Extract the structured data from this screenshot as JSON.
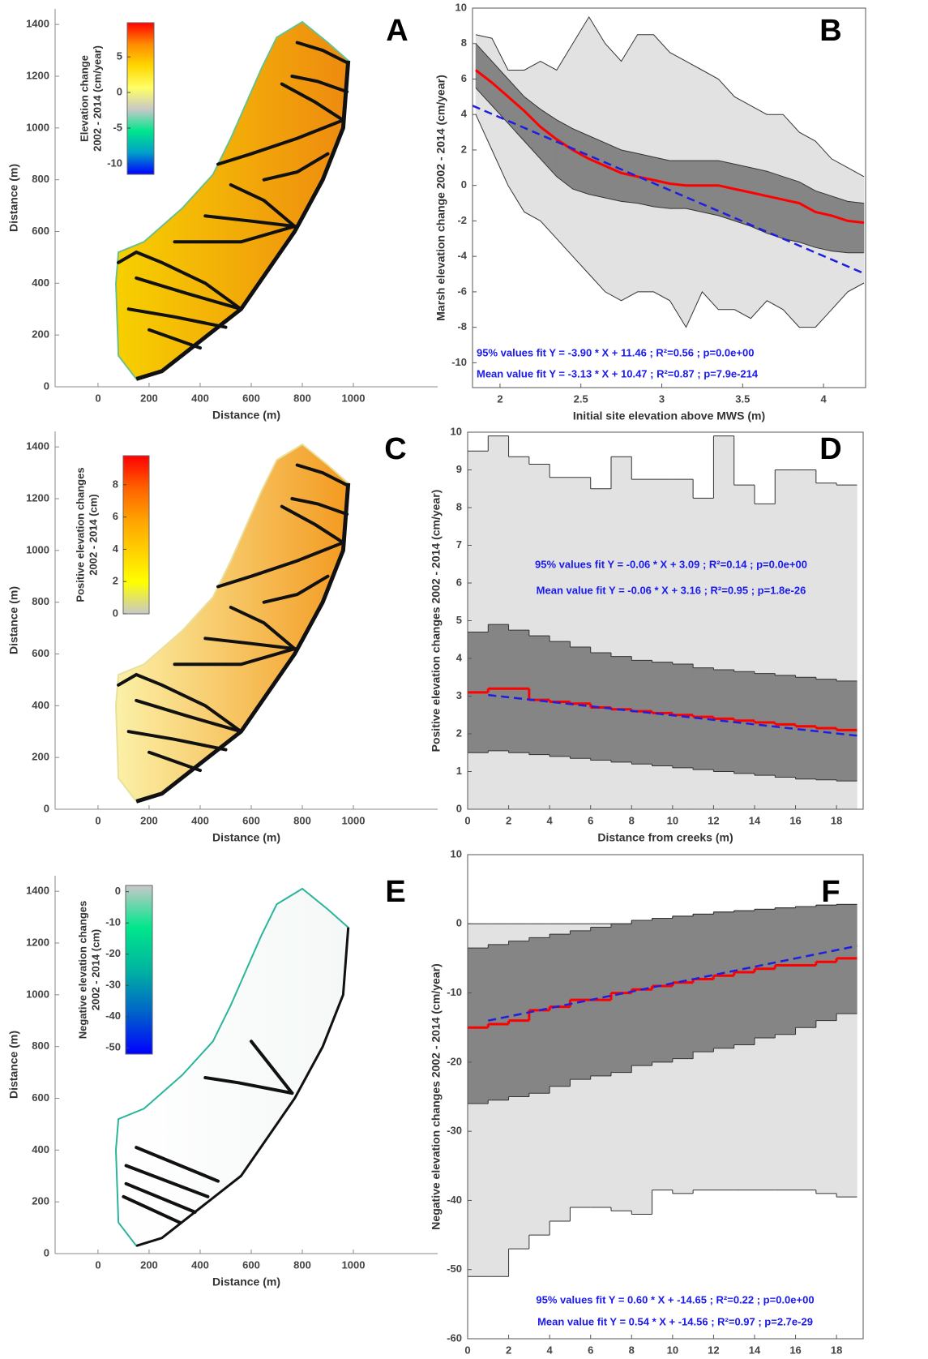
{
  "chart_data": [
    {
      "type": "map",
      "panel": "A",
      "xlabel": "Distance (m)",
      "ylabel": "Distance (m)",
      "xlim": [
        -168,
        1330
      ],
      "ylim": [
        0,
        1460
      ],
      "xticks": [
        0,
        200,
        400,
        600,
        800,
        1000
      ],
      "yticks": [
        0,
        200,
        400,
        600,
        800,
        1000,
        1200,
        1400
      ],
      "fill_colors": [
        "#f7d000",
        "#ee8a10"
      ],
      "outline_color": "#6cc08a",
      "colorbar": {
        "label": [
          "Elevation change",
          "2002 - 2014 (cm/year)"
        ],
        "lim": [
          -11.5,
          9.8
        ],
        "ticks": [
          -10,
          -5,
          0,
          5
        ],
        "colors": [
          "#ff0000",
          "#ff8c00",
          "#ffd700",
          "#ffff66",
          "#c8c8c8",
          "#00e68c",
          "#00a0c8",
          "#0000ff"
        ]
      }
    },
    {
      "type": "band",
      "panel": "B",
      "xlabel": "Initial site elevation above MWS (m)",
      "ylabel": "Marsh elevation change 2002 - 2014 (cm/year)",
      "xlim": [
        1.83,
        4.26
      ],
      "ylim": [
        -11.4,
        10
      ],
      "xticks": [
        2,
        2.5,
        3,
        3.5,
        4
      ],
      "yticks": [
        -10,
        -8,
        -6,
        -4,
        -2,
        0,
        2,
        4,
        6,
        8,
        10
      ],
      "x": [
        1.85,
        1.95,
        2.05,
        2.15,
        2.25,
        2.35,
        2.45,
        2.55,
        2.65,
        2.75,
        2.85,
        2.95,
        3.05,
        3.15,
        3.25,
        3.35,
        3.45,
        3.55,
        3.65,
        3.75,
        3.85,
        3.95,
        4.05,
        4.15,
        4.25
      ],
      "edge_color": "#333333",
      "bands": [
        {
          "color": "#e2e2e2",
          "upper": [
            8.5,
            8.3,
            6.5,
            6.5,
            7,
            6.5,
            8,
            9.5,
            8,
            7,
            8.5,
            8.5,
            7.5,
            7,
            6.5,
            6,
            5,
            4.5,
            4,
            4,
            3,
            2.5,
            1.5,
            1,
            0.5
          ],
          "lower": [
            4,
            2,
            0,
            -1.5,
            -2,
            -3,
            -4,
            -5,
            -6,
            -6.5,
            -6,
            -6,
            -6.5,
            -8,
            -6,
            -7,
            -7,
            -7.5,
            -6.5,
            -7,
            -8,
            -8,
            -7,
            -6,
            -5.5
          ]
        },
        {
          "color": "#858585",
          "upper": [
            8,
            7,
            6,
            5,
            4.3,
            3.7,
            3.2,
            2.8,
            2.4,
            2,
            1.8,
            1.6,
            1.4,
            1.4,
            1.4,
            1.4,
            1.2,
            1,
            0.8,
            0.5,
            0.2,
            -0.3,
            -0.6,
            -0.9,
            -1
          ],
          "lower": [
            5.5,
            4.5,
            3.5,
            2.5,
            1.5,
            0.5,
            -0.2,
            -0.5,
            -0.7,
            -0.9,
            -1,
            -1.2,
            -1.3,
            -1.3,
            -1.5,
            -1.7,
            -2,
            -2.3,
            -2.7,
            -3,
            -3.2,
            -3.5,
            -3.7,
            -3.8,
            -3.8
          ]
        }
      ],
      "lines": [
        {
          "color": "#ff0000",
          "dash": false,
          "values": [
            6.5,
            5.8,
            5,
            4.2,
            3.3,
            2.6,
            2,
            1.5,
            1.1,
            0.7,
            0.5,
            0.3,
            0.1,
            0,
            0,
            0,
            -0.2,
            -0.4,
            -0.6,
            -0.8,
            -1,
            -1.5,
            -1.7,
            -2,
            -2.1
          ]
        },
        {
          "color": "#1f1fe0",
          "dash": true,
          "x": [
            1.83,
            4.26
          ],
          "values": [
            4.5,
            -5.0
          ]
        }
      ],
      "annotations": [
        "95% values fit Y = -3.90 * X + 11.46 ; R²=0.56 ; p=0.0e+00",
        "Mean value fit Y = -3.13 * X + 10.47 ; R²=0.87 ; p=7.9e-214"
      ]
    },
    {
      "type": "map",
      "panel": "C",
      "xlabel": "Distance (m)",
      "ylabel": "Distance (m)",
      "xlim": [
        -168,
        1330
      ],
      "ylim": [
        0,
        1460
      ],
      "xticks": [
        0,
        200,
        400,
        600,
        800,
        1000
      ],
      "yticks": [
        0,
        200,
        400,
        600,
        800,
        1000,
        1200,
        1400
      ],
      "fill_colors": [
        "#fbf1a8",
        "#f39a20"
      ],
      "outline_color": "#e8e0a0",
      "colorbar": {
        "label": [
          "Positive elevation changes",
          "2002 - 2014 (cm)"
        ],
        "lim": [
          0,
          9.8
        ],
        "ticks": [
          0,
          2,
          4,
          6,
          8
        ],
        "colors": [
          "#ff0000",
          "#ff6000",
          "#ffa000",
          "#ffd000",
          "#ffff00",
          "#c8c8c8"
        ]
      }
    },
    {
      "type": "step",
      "panel": "D",
      "xlabel": "Distance from creeks (m)",
      "ylabel": "Positive elevation changes 2002 - 2014 (cm/year)",
      "xlim": [
        0,
        19.3
      ],
      "ylim": [
        0,
        10
      ],
      "xticks": [
        0,
        2,
        4,
        6,
        8,
        10,
        12,
        14,
        16,
        18
      ],
      "yticks": [
        0,
        1,
        2,
        3,
        4,
        5,
        6,
        7,
        8,
        9,
        10
      ],
      "bins": [
        0,
        1,
        2,
        3,
        4,
        5,
        6,
        7,
        8,
        9,
        10,
        11,
        12,
        13,
        14,
        15,
        16,
        17,
        18,
        19
      ],
      "edge_color": "#333333",
      "bands": [
        {
          "color": "#e2e2e2",
          "upper": [
            9.5,
            9.9,
            9.35,
            9.15,
            8.8,
            8.8,
            8.5,
            9.35,
            8.75,
            8.75,
            8.75,
            8.25,
            9.9,
            8.6,
            8.1,
            9.0,
            9.0,
            8.65,
            8.6
          ],
          "lower": [
            0,
            0,
            0,
            0,
            0,
            0,
            0,
            0,
            0,
            0,
            0,
            0,
            0,
            0,
            0,
            0,
            0,
            0,
            0
          ]
        },
        {
          "color": "#858585",
          "upper": [
            4.7,
            4.9,
            4.75,
            4.6,
            4.45,
            4.3,
            4.15,
            4.05,
            3.95,
            3.9,
            3.85,
            3.75,
            3.7,
            3.65,
            3.6,
            3.55,
            3.5,
            3.45,
            3.4
          ],
          "lower": [
            1.5,
            1.55,
            1.5,
            1.45,
            1.4,
            1.35,
            1.3,
            1.25,
            1.2,
            1.15,
            1.1,
            1.05,
            1.0,
            0.95,
            0.9,
            0.85,
            0.8,
            0.78,
            0.75
          ]
        }
      ],
      "lines": [
        {
          "color": "#ff0000",
          "dash": false,
          "values": [
            3.1,
            3.2,
            3.2,
            2.9,
            2.85,
            2.8,
            2.7,
            2.65,
            2.6,
            2.55,
            2.5,
            2.45,
            2.4,
            2.35,
            2.3,
            2.25,
            2.2,
            2.15,
            2.1
          ]
        },
        {
          "color": "#1f1fe0",
          "dash": true,
          "x": [
            1,
            19
          ],
          "values": [
            3.03,
            1.95
          ]
        }
      ],
      "annotations": [
        "95% values fit Y = -0.06 * X + 3.09 ; R²=0.14 ; p=0.0e+00",
        "Mean value fit Y = -0.06 * X + 3.16 ; R²=0.95 ; p=1.8e-26"
      ]
    },
    {
      "type": "map",
      "panel": "E",
      "xlabel": "Distance (m)",
      "ylabel": "Distance (m)",
      "xlim": [
        -168,
        1330
      ],
      "ylim": [
        0,
        1460
      ],
      "xticks": [
        0,
        200,
        400,
        600,
        800,
        1000
      ],
      "yticks": [
        0,
        200,
        400,
        600,
        800,
        1000,
        1200,
        1400
      ],
      "fill_colors": [
        "#ffffff",
        "#f4f8f6"
      ],
      "outline_color": "#2bb59a",
      "colorbar": {
        "label": [
          "Negative elevation changes",
          "2002 - 2014 (cm)"
        ],
        "lim": [
          -52,
          2
        ],
        "ticks": [
          -50,
          -40,
          -30,
          -20,
          -10,
          0
        ],
        "colors": [
          "#c8c8c8",
          "#00e68c",
          "#00b4a0",
          "#0064c8",
          "#0000ff"
        ]
      }
    },
    {
      "type": "step",
      "panel": "F",
      "xlabel": "Distance from creeks (m)",
      "ylabel": "Negative elevation changes 2002 - 2014 (cm/year)",
      "xlim": [
        0,
        19.3
      ],
      "ylim": [
        -60,
        10
      ],
      "xticks": [
        0,
        2,
        4,
        6,
        8,
        10,
        12,
        14,
        16,
        18
      ],
      "yticks": [
        -60,
        -50,
        -40,
        -30,
        -20,
        -10,
        0,
        10
      ],
      "bins": [
        0,
        1,
        2,
        3,
        4,
        5,
        6,
        7,
        8,
        9,
        10,
        11,
        12,
        13,
        14,
        15,
        16,
        17,
        18,
        19
      ],
      "edge_color": "#333333",
      "bands": [
        {
          "color": "#e2e2e2",
          "upper": [
            0,
            0,
            0,
            0,
            0,
            0,
            0,
            0,
            0.5,
            0.8,
            1.1,
            1.4,
            1.7,
            1.9,
            2.1,
            2.3,
            2.5,
            2.7,
            2.8
          ],
          "lower": [
            -51,
            -51,
            -47,
            -45,
            -43,
            -41,
            -41,
            -41.5,
            -42,
            -38.5,
            -39,
            -38.5,
            -38.5,
            -38.5,
            -38.5,
            -38.5,
            -38.5,
            -39,
            -39.5
          ]
        },
        {
          "color": "#858585",
          "upper": [
            -3.5,
            -3,
            -2.5,
            -2,
            -1.5,
            -1,
            -0.5,
            0,
            0.5,
            0.8,
            1.1,
            1.4,
            1.7,
            1.9,
            2.1,
            2.3,
            2.5,
            2.7,
            2.8
          ],
          "lower": [
            -26,
            -25.5,
            -25,
            -24.5,
            -23.5,
            -22.5,
            -22,
            -21.5,
            -20.5,
            -20,
            -19.5,
            -18.5,
            -18,
            -17.5,
            -16.5,
            -16,
            -15,
            -14,
            -13
          ]
        }
      ],
      "lines": [
        {
          "color": "#ff0000",
          "dash": false,
          "values": [
            -15,
            -14.5,
            -14,
            -12.5,
            -12,
            -11,
            -11,
            -10,
            -9.5,
            -9,
            -8.5,
            -8,
            -7.5,
            -7,
            -6.5,
            -6,
            -6,
            -5.5,
            -5
          ]
        },
        {
          "color": "#1f1fe0",
          "dash": true,
          "x": [
            1,
            19
          ],
          "values": [
            -14.0,
            -3.2
          ]
        }
      ],
      "annotations": [
        "95% values fit Y = 0.60 * X + -14.65 ; R²=0.22 ; p=0.0e+00",
        "Mean value fit Y = 0.54 * X + -14.56 ; R²=0.97 ; p=2.7e-29"
      ]
    }
  ]
}
